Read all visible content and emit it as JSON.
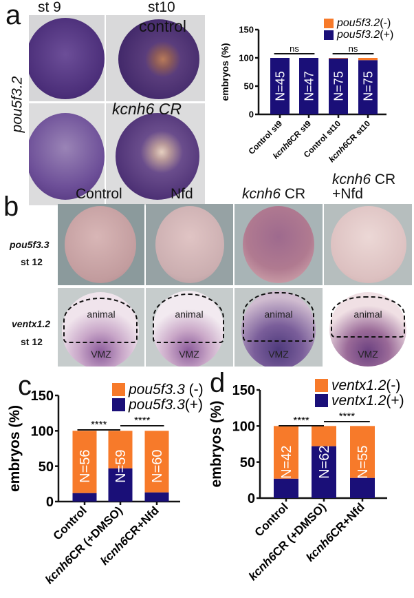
{
  "colors": {
    "negative": "#f77a2a",
    "positive": "#1a0f78"
  },
  "panel_a": {
    "letter": "a",
    "col_headers": [
      "st 9",
      "st10"
    ],
    "row_label": "pou5f3.2",
    "control_label": "control",
    "cr_label": "kcnh6 CR"
  },
  "panel_b": {
    "letter": "b",
    "col_headers": [
      {
        "italic": "",
        "plain": "Control"
      },
      {
        "italic": "",
        "plain": "Nfd"
      },
      {
        "italic": "kcnh6",
        "plain": " CR"
      },
      {
        "italic": "kcnh6",
        "plain": " CR",
        "line2": "+Nfd"
      }
    ],
    "rows": [
      {
        "gene": "pou5f3.3",
        "stage": "st 12"
      },
      {
        "gene": "ventx1.2",
        "stage": "st 12"
      }
    ],
    "region_labels": {
      "animal": "animal",
      "vmz": "VMZ"
    }
  },
  "chart_data": [
    {
      "panel": "a",
      "type": "bar",
      "stacked": true,
      "categories": [
        "Control st9",
        "kcnh6CR st9",
        "Control st10",
        "kcnh6CR st10"
      ],
      "series": [
        {
          "name": "pou5f3.2(+)",
          "values": [
            100,
            100,
            99,
            96
          ]
        },
        {
          "name": "pou5f3.2(-)",
          "values": [
            0,
            0,
            1,
            4
          ]
        }
      ],
      "bar_labels": [
        "N=45",
        "N=47",
        "N=75",
        "N=75"
      ],
      "ylabel": "embryos (%)",
      "ylim": [
        0,
        150
      ],
      "yticks": [
        "0",
        "50",
        "100",
        "150"
      ],
      "significance": [
        {
          "between": [
            0,
            1
          ],
          "label": "ns"
        },
        {
          "between": [
            2,
            3
          ],
          "label": "ns"
        }
      ],
      "legend": "top-right",
      "grid": false
    },
    {
      "panel": "c",
      "type": "bar",
      "stacked": true,
      "categories": [
        "Control",
        "kcnh6CR (+DMSO)",
        "kcnh6CR+Nfd"
      ],
      "series": [
        {
          "name": "pou5f3.3(+)",
          "values": [
            12,
            47,
            13
          ]
        },
        {
          "name": "pou5f3.3 (-)",
          "values": [
            88,
            53,
            87
          ]
        }
      ],
      "bar_labels": [
        "N=56",
        "N=59",
        "N=60"
      ],
      "ylabel": "embryos (%)",
      "ylim": [
        0,
        150
      ],
      "yticks": [
        "0",
        "50",
        "100",
        "150"
      ],
      "significance": [
        {
          "between": [
            0,
            1
          ],
          "label": "****"
        },
        {
          "between": [
            1,
            2
          ],
          "label": "****"
        }
      ],
      "legend": "top-right",
      "grid": false
    },
    {
      "panel": "d",
      "type": "bar",
      "stacked": true,
      "categories": [
        "Control",
        "kcnh6CR (+DMSO)",
        "kcnh6CR+Nfd"
      ],
      "series": [
        {
          "name": "ventx1.2(+)",
          "values": [
            27,
            72,
            28
          ]
        },
        {
          "name": "ventx1.2(-)",
          "values": [
            73,
            28,
            72
          ]
        }
      ],
      "bar_labels": [
        "N=42",
        "N=62",
        "N=55"
      ],
      "ylabel": "embryos (%)",
      "ylim": [
        0,
        150
      ],
      "yticks": [
        "0",
        "50",
        "100",
        "150"
      ],
      "significance": [
        {
          "between": [
            0,
            1
          ],
          "label": "****"
        },
        {
          "between": [
            1,
            2
          ],
          "label": "****"
        }
      ],
      "legend": "top-right",
      "grid": false
    }
  ]
}
